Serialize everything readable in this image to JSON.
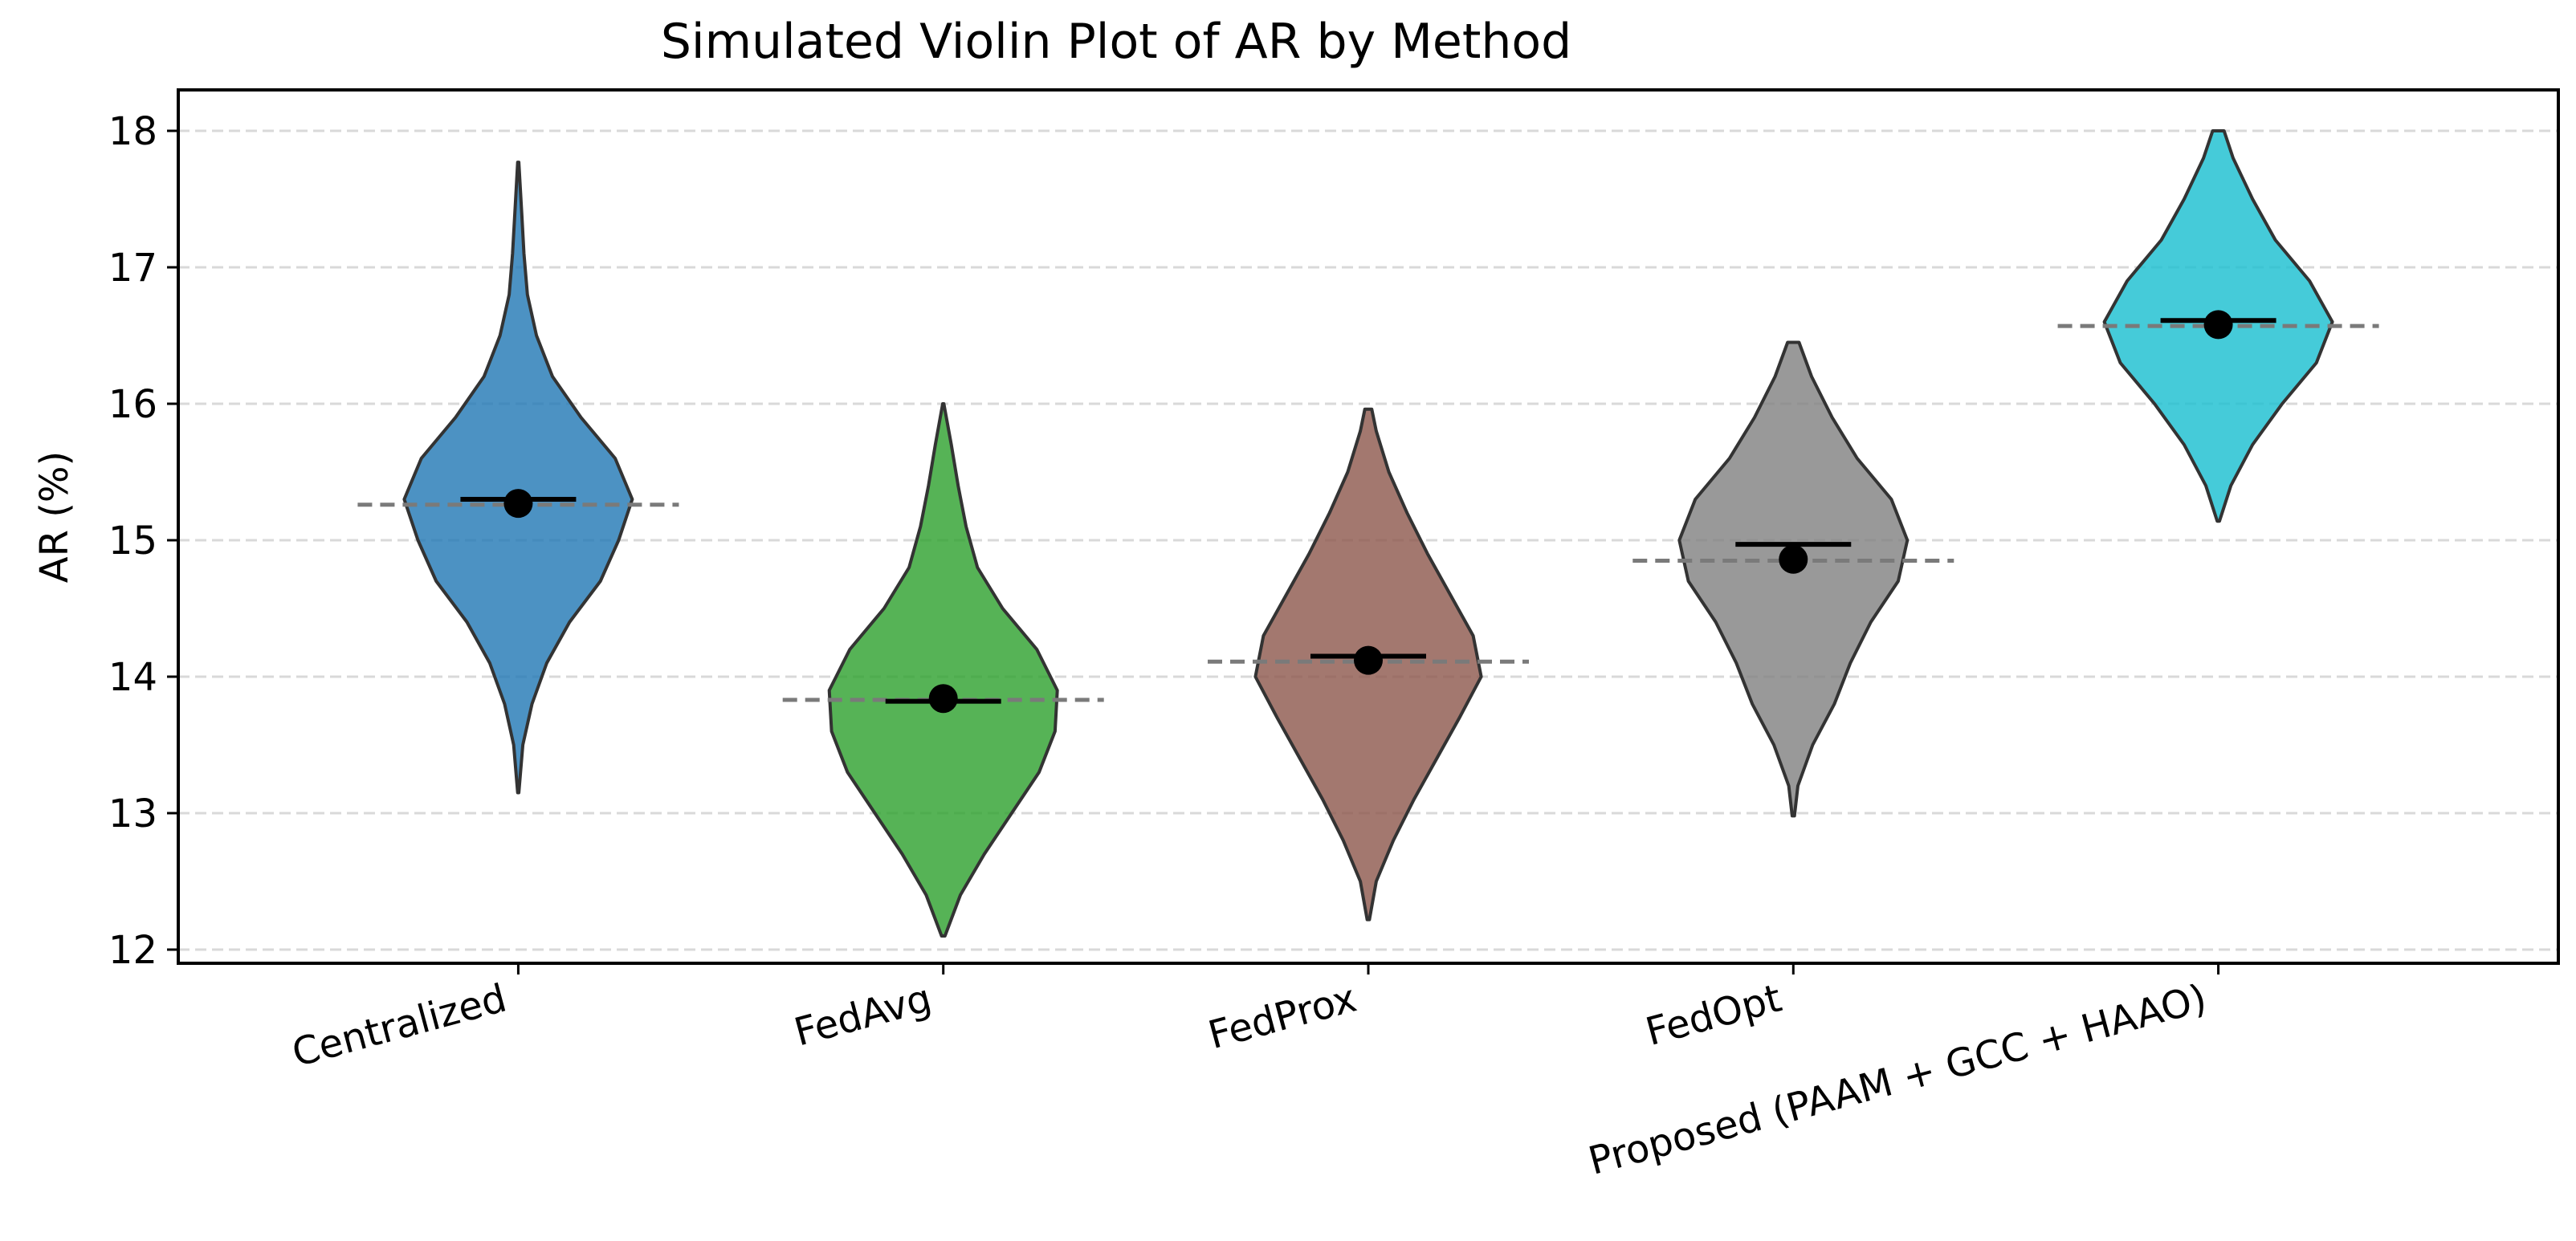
{
  "chart_data": {
    "type": "violin",
    "title": "Simulated Violin Plot of AR by Method",
    "xlabel": "",
    "ylabel": "AR (%)",
    "ylim": [
      11.9,
      18.3
    ],
    "yticks": [
      12,
      13,
      14,
      15,
      16,
      17,
      18
    ],
    "grid": "horizontal dashed",
    "categories": [
      "Centralized",
      "FedAvg",
      "FedProx",
      "FedOpt",
      "Proposed (PAAM + GCC + HAAO)"
    ],
    "series": [
      {
        "category": "Centralized",
        "color": "#1f77b4",
        "mean": 15.27,
        "median": 15.3,
        "reference_line": 15.26,
        "min": 13.15,
        "max": 17.77,
        "density": [
          [
            13.15,
            0.005
          ],
          [
            13.5,
            0.04
          ],
          [
            13.8,
            0.12
          ],
          [
            14.1,
            0.25
          ],
          [
            14.4,
            0.45
          ],
          [
            14.7,
            0.72
          ],
          [
            15.0,
            0.88
          ],
          [
            15.3,
            1.0
          ],
          [
            15.6,
            0.85
          ],
          [
            15.9,
            0.55
          ],
          [
            16.2,
            0.3
          ],
          [
            16.5,
            0.16
          ],
          [
            16.8,
            0.08
          ],
          [
            17.1,
            0.05
          ],
          [
            17.4,
            0.03
          ],
          [
            17.77,
            0.005
          ]
        ]
      },
      {
        "category": "FedAvg",
        "color": "#2ca02c",
        "mean": 13.84,
        "median": 13.82,
        "reference_line": 13.83,
        "min": 12.1,
        "max": 16.0,
        "density": [
          [
            12.1,
            0.015
          ],
          [
            12.4,
            0.15
          ],
          [
            12.7,
            0.36
          ],
          [
            13.0,
            0.6
          ],
          [
            13.3,
            0.84
          ],
          [
            13.6,
            0.98
          ],
          [
            13.9,
            1.0
          ],
          [
            14.2,
            0.82
          ],
          [
            14.5,
            0.52
          ],
          [
            14.8,
            0.3
          ],
          [
            15.1,
            0.2
          ],
          [
            15.4,
            0.13
          ],
          [
            15.7,
            0.07
          ],
          [
            16.0,
            0.005
          ]
        ]
      },
      {
        "category": "FedProx",
        "color": "#8c564b",
        "mean": 14.12,
        "median": 14.15,
        "reference_line": 14.11,
        "min": 12.22,
        "max": 15.96,
        "density": [
          [
            12.22,
            0.01
          ],
          [
            12.5,
            0.07
          ],
          [
            12.8,
            0.22
          ],
          [
            13.1,
            0.4
          ],
          [
            13.4,
            0.6
          ],
          [
            13.7,
            0.8
          ],
          [
            14.0,
            0.99
          ],
          [
            14.3,
            0.92
          ],
          [
            14.6,
            0.72
          ],
          [
            14.9,
            0.52
          ],
          [
            15.2,
            0.34
          ],
          [
            15.5,
            0.18
          ],
          [
            15.8,
            0.07
          ],
          [
            15.96,
            0.03
          ]
        ]
      },
      {
        "category": "FedOpt",
        "color": "#7f7f7f",
        "mean": 14.86,
        "median": 14.97,
        "reference_line": 14.85,
        "min": 12.98,
        "max": 16.45,
        "density": [
          [
            12.98,
            0.01
          ],
          [
            13.2,
            0.04
          ],
          [
            13.5,
            0.17
          ],
          [
            13.8,
            0.36
          ],
          [
            14.1,
            0.5
          ],
          [
            14.4,
            0.68
          ],
          [
            14.7,
            0.92
          ],
          [
            15.0,
            1.0
          ],
          [
            15.3,
            0.86
          ],
          [
            15.6,
            0.56
          ],
          [
            15.9,
            0.34
          ],
          [
            16.2,
            0.16
          ],
          [
            16.45,
            0.05
          ]
        ]
      },
      {
        "category": "Proposed (PAAM + GCC + HAAO)",
        "color": "#17becf",
        "mean": 16.58,
        "median": 16.61,
        "reference_line": 16.57,
        "min": 15.14,
        "max": 18.0,
        "density": [
          [
            15.14,
            0.01
          ],
          [
            15.4,
            0.11
          ],
          [
            15.7,
            0.3
          ],
          [
            16.0,
            0.56
          ],
          [
            16.3,
            0.86
          ],
          [
            16.6,
            1.0
          ],
          [
            16.9,
            0.8
          ],
          [
            17.2,
            0.5
          ],
          [
            17.5,
            0.3
          ],
          [
            17.8,
            0.13
          ],
          [
            18.0,
            0.05
          ]
        ]
      }
    ]
  }
}
